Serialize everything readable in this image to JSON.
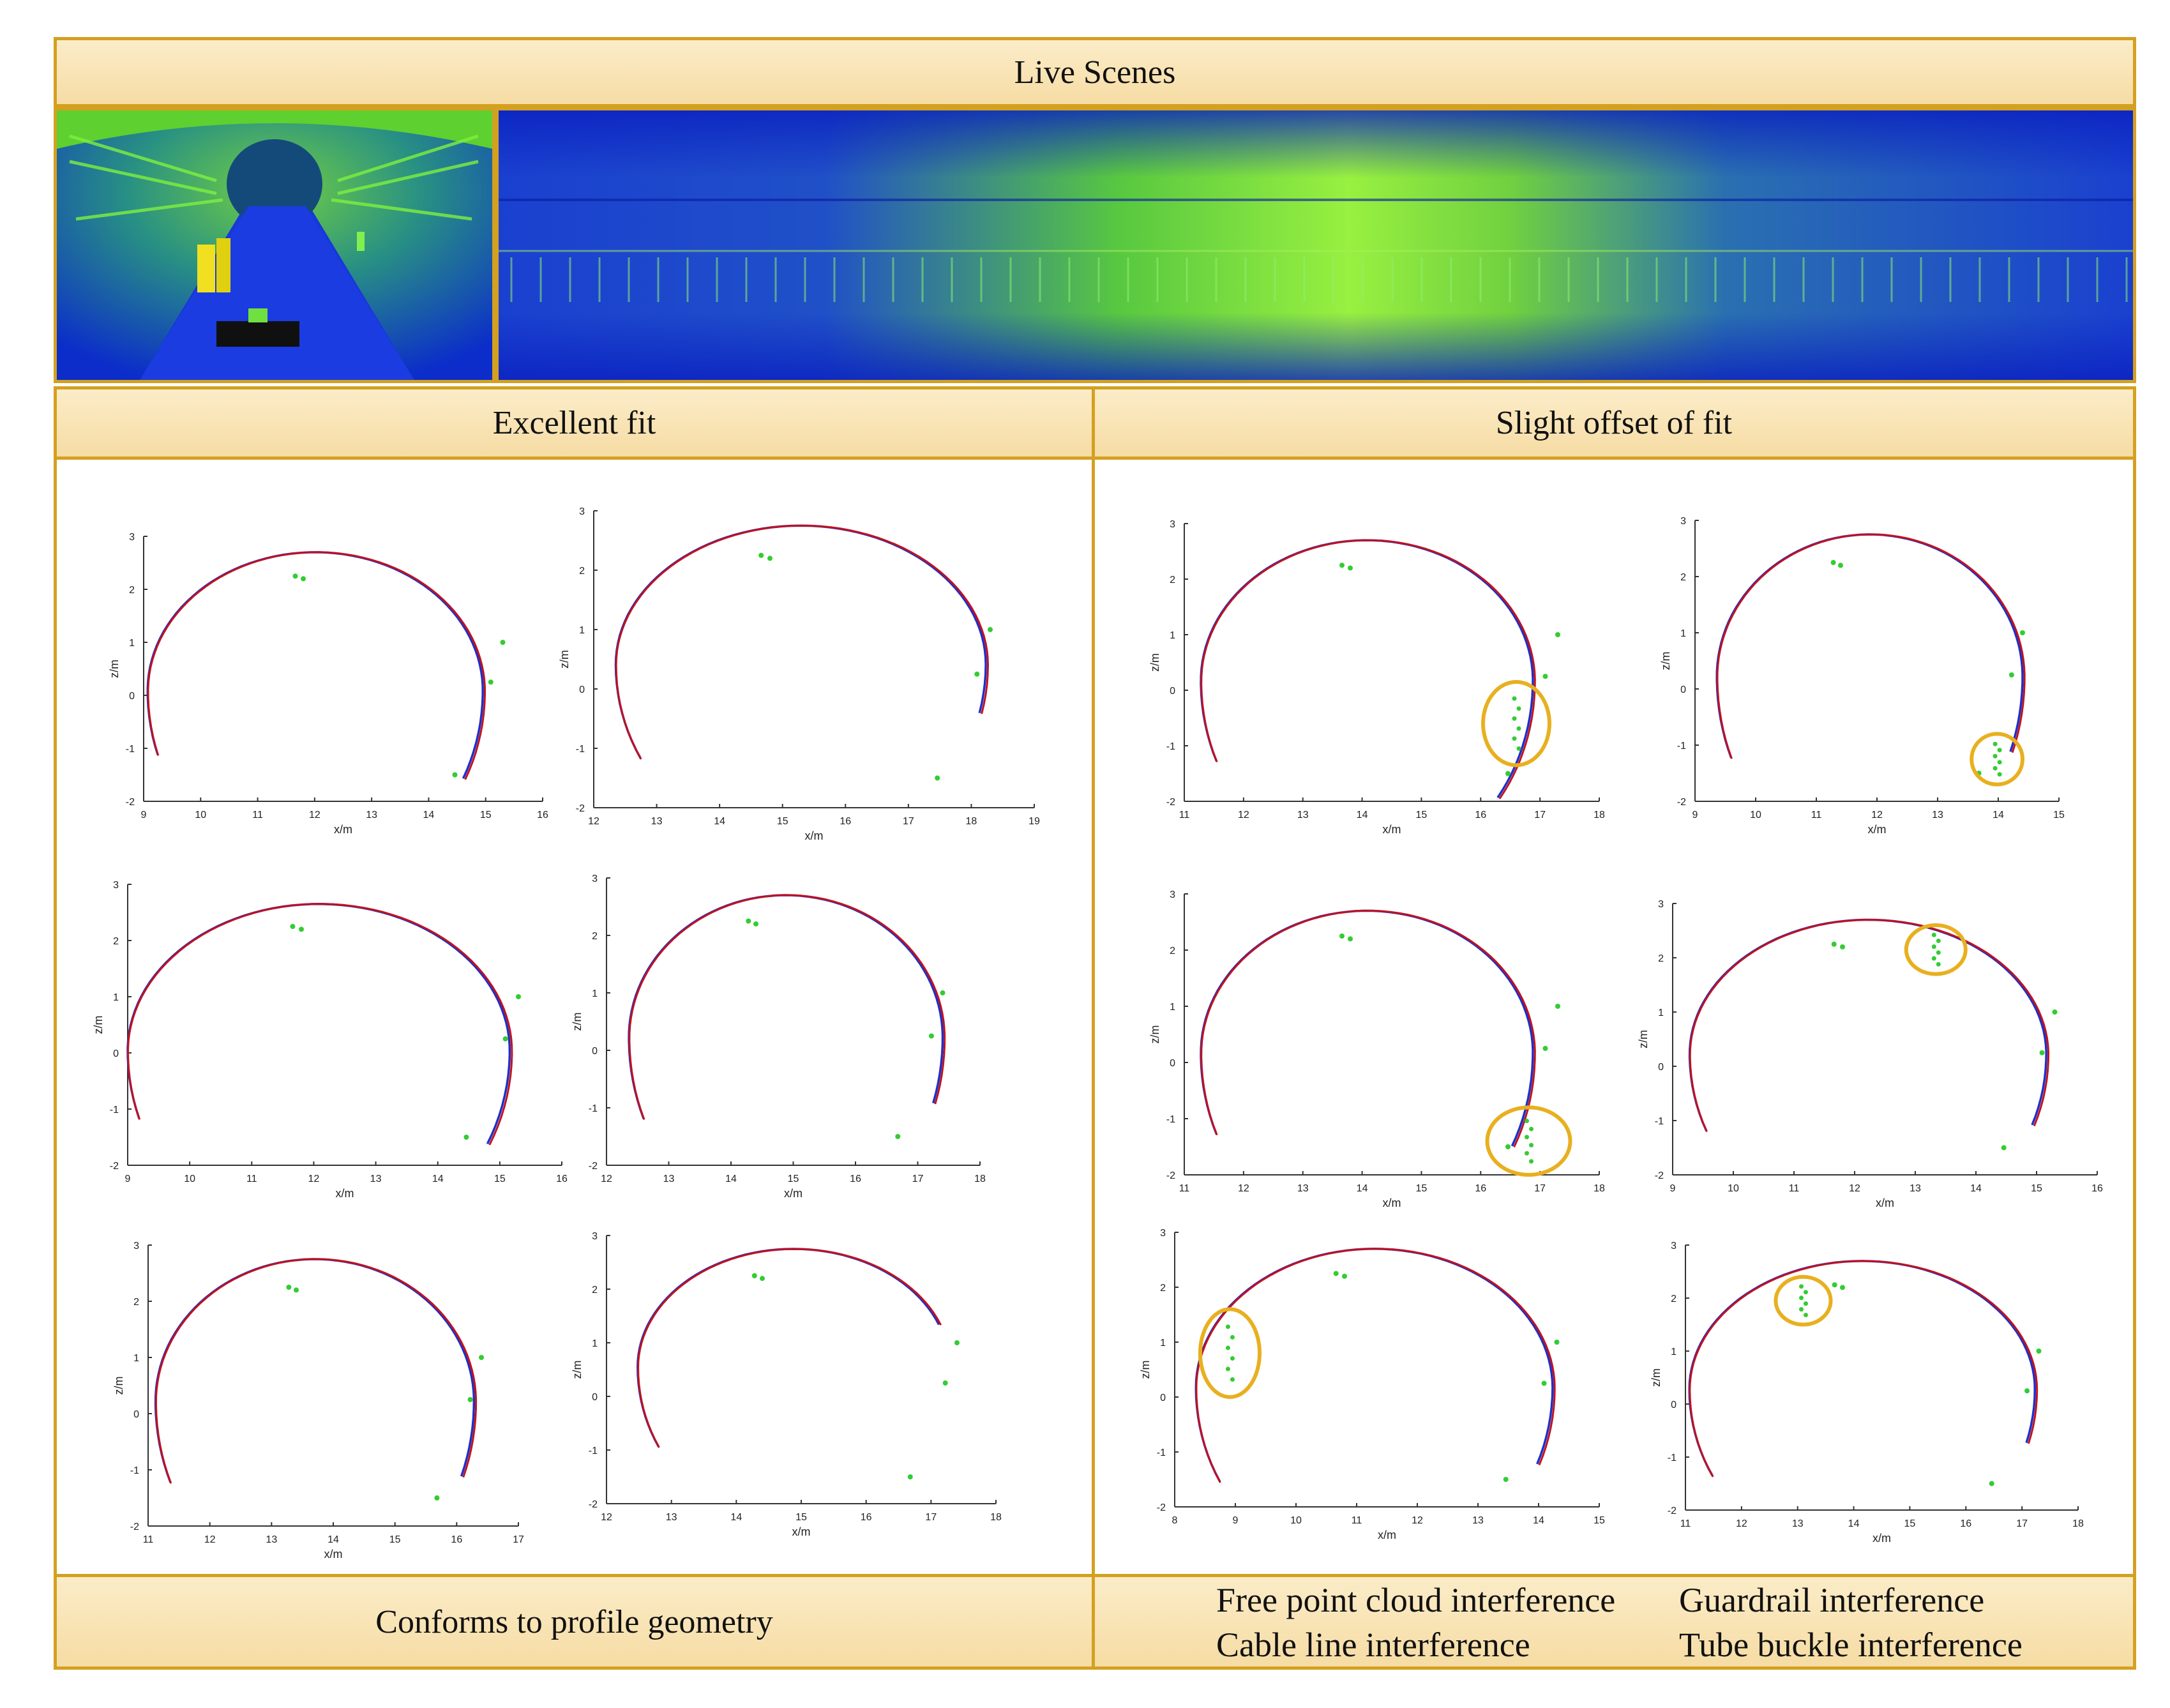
{
  "header": {
    "title": "Live Scenes"
  },
  "columns": {
    "left_title": "Excellent fit",
    "right_title": "Slight offset of fit"
  },
  "footer": {
    "left_caption": "Conforms to profile geometry",
    "right_labels": [
      "Free point cloud interference",
      "Guardrail interference",
      "Cable line interference",
      "Tube buckle interference"
    ]
  },
  "colors": {
    "accent": "#d4a020",
    "band": "#f8e2b0",
    "fit_red": "#c0121e",
    "fit_blue": "#1f2fc8",
    "points": "#33cc33",
    "highlight": "#e8b020"
  },
  "plots": [
    {
      "id": "p1",
      "x_ticks": [
        "9",
        "10",
        "11",
        "12",
        "13",
        "14",
        "15",
        "16"
      ],
      "y_ticks": [
        "3",
        "2",
        "1",
        "0",
        "-1",
        "-2"
      ],
      "xlabel": "x/m",
      "ylabel": "z/m",
      "marker": false
    },
    {
      "id": "p2",
      "x_ticks": [
        "12",
        "13",
        "14",
        "15",
        "16",
        "17",
        "18",
        "19"
      ],
      "y_ticks": [
        "3",
        "2",
        "1",
        "0",
        "-1",
        "-2"
      ],
      "xlabel": "x/m",
      "ylabel": "z/m",
      "marker": false
    },
    {
      "id": "p3",
      "x_ticks": [
        "9",
        "10",
        "11",
        "12",
        "13",
        "14",
        "15",
        "16"
      ],
      "y_ticks": [
        "3",
        "2",
        "1",
        "0",
        "-1",
        "-2"
      ],
      "xlabel": "x/m",
      "ylabel": "z/m",
      "marker": false
    },
    {
      "id": "p4",
      "x_ticks": [
        "12",
        "13",
        "14",
        "15",
        "16",
        "17",
        "18"
      ],
      "y_ticks": [
        "3",
        "2",
        "1",
        "0",
        "-1",
        "-2"
      ],
      "xlabel": "x/m",
      "ylabel": "z/m",
      "marker": false
    },
    {
      "id": "p5",
      "x_ticks": [
        "11",
        "12",
        "13",
        "14",
        "15",
        "16",
        "17"
      ],
      "y_ticks": [
        "3",
        "2",
        "1",
        "0",
        "-1",
        "-2"
      ],
      "xlabel": "x/m",
      "ylabel": "z/m",
      "marker": false
    },
    {
      "id": "p6",
      "x_ticks": [
        "12",
        "13",
        "14",
        "15",
        "16",
        "17",
        "18"
      ],
      "y_ticks": [
        "3",
        "2",
        "1",
        "0",
        "-1",
        "-2"
      ],
      "xlabel": "x/m",
      "ylabel": "z/m",
      "marker": false
    },
    {
      "id": "p7",
      "x_ticks": [
        "11",
        "12",
        "13",
        "14",
        "15",
        "16",
        "17",
        "18"
      ],
      "y_ticks": [
        "3",
        "2",
        "1",
        "0",
        "-1",
        "-2"
      ],
      "xlabel": "x/m",
      "ylabel": "z/m",
      "marker": "free-point-cloud"
    },
    {
      "id": "p8",
      "x_ticks": [
        "9",
        "10",
        "11",
        "12",
        "13",
        "14",
        "15"
      ],
      "y_ticks": [
        "3",
        "2",
        "1",
        "0",
        "-1",
        "-2"
      ],
      "xlabel": "x/m",
      "ylabel": "z/m",
      "marker": "tube-buckle"
    },
    {
      "id": "p9",
      "x_ticks": [
        "11",
        "12",
        "13",
        "14",
        "15",
        "16",
        "17",
        "18"
      ],
      "y_ticks": [
        "3",
        "2",
        "1",
        "0",
        "-1",
        "-2"
      ],
      "xlabel": "x/m",
      "ylabel": "z/m",
      "marker": "free-point-cloud"
    },
    {
      "id": "p10",
      "x_ticks": [
        "9",
        "10",
        "11",
        "12",
        "13",
        "14",
        "15",
        "16"
      ],
      "y_ticks": [
        "3",
        "2",
        "1",
        "0",
        "-1",
        "-2"
      ],
      "xlabel": "x/m",
      "ylabel": "z/m",
      "marker": "cable-line"
    },
    {
      "id": "p11",
      "x_ticks": [
        "8",
        "9",
        "10",
        "11",
        "12",
        "13",
        "14",
        "15"
      ],
      "y_ticks": [
        "3",
        "2",
        "1",
        "0",
        "-1",
        "-2"
      ],
      "xlabel": "x/m",
      "ylabel": "z/m",
      "marker": "guardrail"
    },
    {
      "id": "p12",
      "x_ticks": [
        "11",
        "12",
        "13",
        "14",
        "15",
        "16",
        "17",
        "18"
      ],
      "y_ticks": [
        "3",
        "2",
        "1",
        "0",
        "-1",
        "-2"
      ],
      "xlabel": "x/m",
      "ylabel": "z/m",
      "marker": "cable-line"
    }
  ]
}
